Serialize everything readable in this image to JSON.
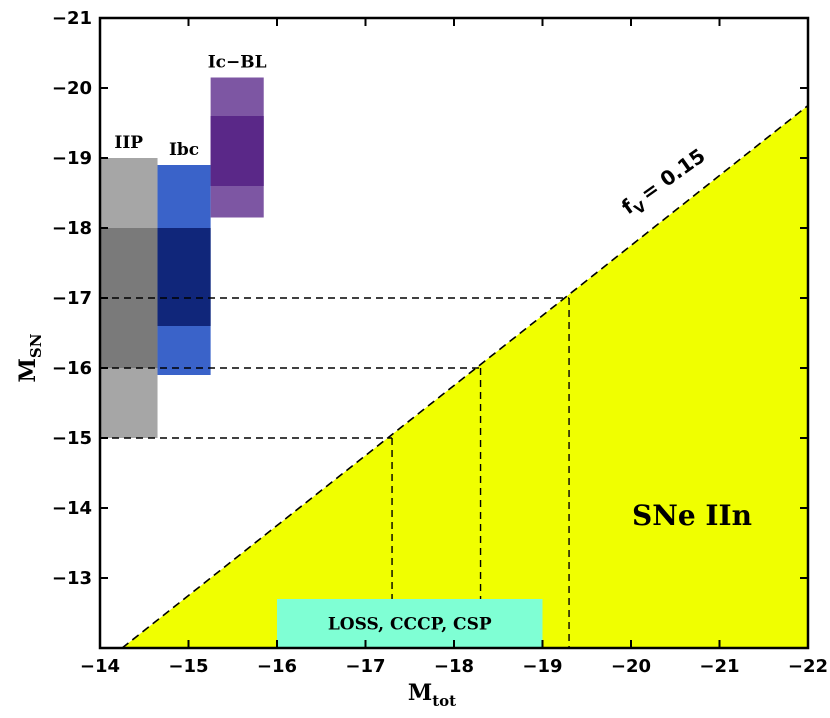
{
  "chart_data": {
    "type": "area",
    "xlabel": "M",
    "xlabel_sub": "tot",
    "ylabel": "M",
    "ylabel_sub": "SN",
    "xlim": [
      -14,
      -22
    ],
    "ylim": [
      -12,
      -21
    ],
    "x_ticks": [
      -14,
      -15,
      -16,
      -17,
      -18,
      -19,
      -20,
      -21,
      -22
    ],
    "y_ticks": [
      -13,
      -14,
      -15,
      -16,
      -17,
      -18,
      -19,
      -20,
      -21
    ],
    "grid": false,
    "fill_color": "#f0ff00",
    "region_label": "SNe IIn",
    "line": {
      "label": "f",
      "label_sub": "V",
      "label_value": "= 0.15",
      "x": [
        -14.25,
        -22
      ],
      "y": [
        -12,
        -19.75
      ]
    },
    "guides": [
      {
        "y": -15,
        "x": -17.3
      },
      {
        "y": -16,
        "x": -18.3
      },
      {
        "y": -17,
        "x": -19.3
      }
    ],
    "survey_box": {
      "label": "LOSS, CCCP, CSP",
      "x": [
        -16.0,
        -19.0
      ],
      "y": [
        -12.0,
        -12.7
      ],
      "color": "#7fffd4"
    },
    "bands": [
      {
        "name": "IIP",
        "x": [
          -14.0,
          -14.65
        ],
        "outer": [
          -15.0,
          -19.0
        ],
        "inner": [
          -16.0,
          -18.0
        ],
        "outer_color": "#a6a6a6",
        "inner_color": "#7a7a7a"
      },
      {
        "name": "Ibc",
        "x": [
          -14.65,
          -15.25
        ],
        "outer": [
          -15.9,
          -18.9
        ],
        "inner": [
          -16.6,
          -18.0
        ],
        "outer_color": "#3a63c9",
        "inner_color": "#10267a"
      },
      {
        "name": "Ic−BL",
        "x": [
          -15.25,
          -15.85
        ],
        "outer": [
          -18.15,
          -20.15
        ],
        "inner": [
          -18.6,
          -19.6
        ],
        "outer_color": "#7d56a3",
        "inner_color": "#5a2888"
      }
    ]
  }
}
